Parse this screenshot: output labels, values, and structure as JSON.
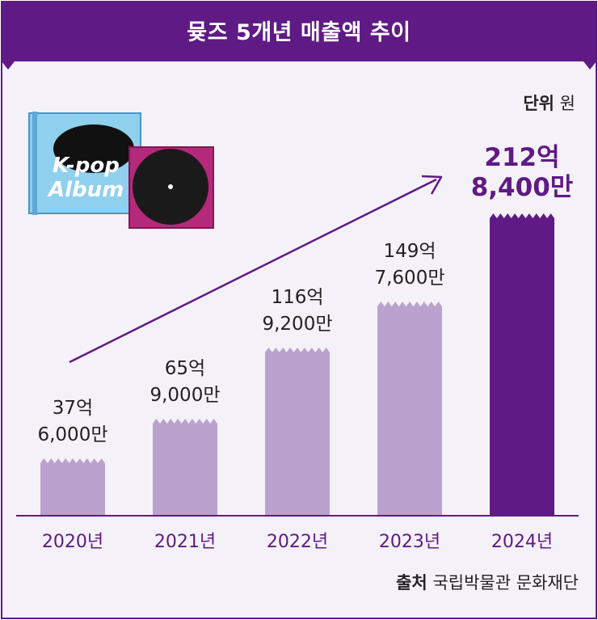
{
  "chart_data": {
    "type": "bar",
    "title": "뮺즈 5개년 매출액 추이",
    "unit_label": "단위",
    "unit_value": "원",
    "categories": [
      "2020년",
      "2021년",
      "2022년",
      "2023년",
      "2024년"
    ],
    "values": [
      37.6,
      65.9,
      116.92,
      149.76,
      212.84
    ],
    "value_labels": [
      [
        "37억",
        "6,000만"
      ],
      [
        "65억",
        "9,000만"
      ],
      [
        "116억",
        "9,200만"
      ],
      [
        "149억",
        "7,600만"
      ],
      [
        "212억",
        "8,400만"
      ]
    ],
    "ylim": [
      0,
      230
    ],
    "highlight_index": 4,
    "source_label": "출처",
    "source_value": "국립박물관 문화재단",
    "illustration_text": [
      "K-pop",
      "Album"
    ]
  },
  "colors": {
    "header": "#5f1a85",
    "background": "#f5f1f8",
    "bar": "#bba2ce",
    "bar_highlight": "#5f1a85",
    "text_accent": "#5f1a85",
    "album_blue": "#8fd0ee",
    "album_pink": "#b5297a"
  }
}
